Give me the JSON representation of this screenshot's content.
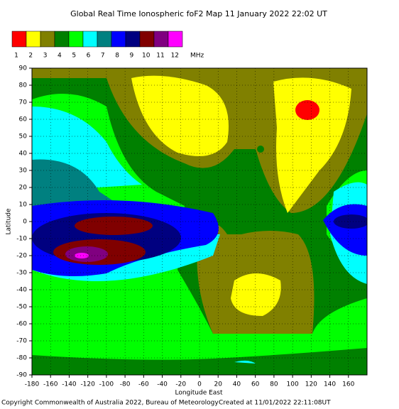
{
  "title": "Global Real Time Ionospheric foF2 Map  11 January 2022 22:02 UT",
  "legend": {
    "levels": [
      1,
      2,
      3,
      4,
      5,
      6,
      7,
      8,
      9,
      10,
      11,
      12
    ],
    "colors": [
      "#ff0000",
      "#ffff00",
      "#808000",
      "#008000",
      "#00ff00",
      "#00ffff",
      "#008080",
      "#0000ff",
      "#000080",
      "#800000",
      "#800080",
      "#ff00ff"
    ],
    "unit": "MHz"
  },
  "map": {
    "xlim": [
      -180,
      180
    ],
    "ylim": [
      -90,
      90
    ],
    "xticks": [
      -180,
      -160,
      -140,
      -120,
      -100,
      -80,
      -60,
      -40,
      -20,
      0,
      20,
      40,
      60,
      80,
      100,
      120,
      140,
      160
    ],
    "yticks": [
      -90,
      -80,
      -70,
      -60,
      -50,
      -40,
      -30,
      -20,
      -10,
      0,
      10,
      20,
      30,
      40,
      50,
      60,
      70,
      80,
      90
    ],
    "x_label": "Longitude East",
    "y_label": "Latitude",
    "grid": true
  },
  "footer": {
    "copyright": "Copyright Commonwealth of Australia 2022, Bureau of Meteorology",
    "created": "Created at 11/01/2022 22:11:08UT"
  }
}
